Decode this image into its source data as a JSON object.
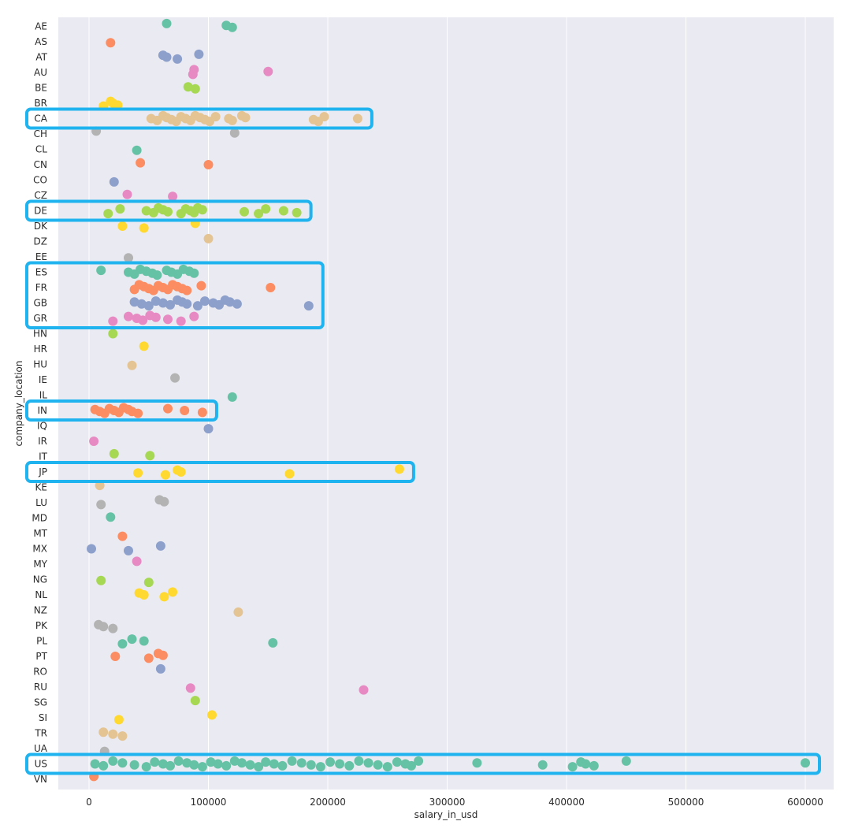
{
  "chart_data": {
    "type": "scatter",
    "xlabel": "salary_in_usd",
    "ylabel": "company_location",
    "xlim": [
      -25000,
      615000
    ],
    "xticks": [
      0,
      100000,
      200000,
      300000,
      400000,
      500000,
      600000
    ],
    "xtick_labels": [
      "0",
      "100000",
      "200000",
      "300000",
      "400000",
      "500000",
      "600000"
    ],
    "grid": "vertical",
    "background": "#eaeaf2",
    "palette": [
      "#66c2a5",
      "#fc8d62",
      "#8da0cb",
      "#e78ac3",
      "#a6d854",
      "#ffd92f",
      "#e5c494",
      "#b3b3b3"
    ],
    "highlight_color": "#1fb4ef",
    "categories": [
      "AE",
      "AS",
      "AT",
      "AU",
      "BE",
      "BR",
      "CA",
      "CH",
      "CL",
      "CN",
      "CO",
      "CZ",
      "DE",
      "DK",
      "DZ",
      "EE",
      "ES",
      "FR",
      "GB",
      "GR",
      "HN",
      "HR",
      "HU",
      "IE",
      "IL",
      "IN",
      "IQ",
      "IR",
      "IT",
      "JP",
      "KE",
      "LU",
      "MD",
      "MT",
      "MX",
      "MY",
      "NG",
      "NL",
      "NZ",
      "PK",
      "PL",
      "PT",
      "RO",
      "RU",
      "SG",
      "SI",
      "TR",
      "UA",
      "US",
      "VN"
    ],
    "series": [
      {
        "category": "AE",
        "values": [
          65000,
          115000,
          120000
        ]
      },
      {
        "category": "AS",
        "values": [
          18000
        ]
      },
      {
        "category": "AT",
        "values": [
          62000,
          65000,
          74000,
          92000
        ]
      },
      {
        "category": "AU",
        "values": [
          87000,
          88000,
          150000
        ]
      },
      {
        "category": "BE",
        "values": [
          83000,
          89000
        ]
      },
      {
        "category": "BR",
        "values": [
          12000,
          18000,
          20000,
          24000
        ]
      },
      {
        "category": "CA",
        "values": [
          52000,
          57000,
          62000,
          65000,
          69000,
          73000,
          77000,
          81000,
          85000,
          89000,
          93000,
          97000,
          101000,
          106000,
          117000,
          120000,
          128000,
          131000,
          188000,
          192000,
          197000,
          225000
        ]
      },
      {
        "category": "CH",
        "values": [
          6000,
          122000
        ]
      },
      {
        "category": "CL",
        "values": [
          40000
        ]
      },
      {
        "category": "CN",
        "values": [
          43000,
          100000
        ]
      },
      {
        "category": "CO",
        "values": [
          21000
        ]
      },
      {
        "category": "CZ",
        "values": [
          32000,
          70000
        ]
      },
      {
        "category": "DE",
        "values": [
          16000,
          26000,
          48000,
          54000,
          58000,
          62000,
          66000,
          77000,
          81000,
          85000,
          88000,
          91000,
          95000,
          130000,
          142000,
          148000,
          163000,
          174000
        ]
      },
      {
        "category": "DK",
        "values": [
          28000,
          46000,
          89000
        ]
      },
      {
        "category": "DZ",
        "values": [
          100000
        ]
      },
      {
        "category": "EE",
        "values": [
          33000
        ]
      },
      {
        "category": "ES",
        "values": [
          10000,
          33000,
          38000,
          43000,
          48000,
          53000,
          57000,
          65000,
          69000,
          74000,
          79000,
          84000,
          88000
        ]
      },
      {
        "category": "FR",
        "values": [
          38000,
          42000,
          46000,
          50000,
          54000,
          58000,
          62000,
          66000,
          70000,
          74000,
          78000,
          82000,
          94000,
          152000
        ]
      },
      {
        "category": "GB",
        "values": [
          38000,
          44000,
          50000,
          56000,
          62000,
          68000,
          74000,
          78000,
          82000,
          91000,
          97000,
          104000,
          109000,
          114000,
          118000,
          124000,
          184000
        ]
      },
      {
        "category": "GR",
        "values": [
          20000,
          33000,
          40000,
          45000,
          51000,
          56000,
          66000,
          77000,
          88000
        ]
      },
      {
        "category": "HN",
        "values": [
          20000
        ]
      },
      {
        "category": "HR",
        "values": [
          46000
        ]
      },
      {
        "category": "HU",
        "values": [
          36000
        ]
      },
      {
        "category": "IE",
        "values": [
          72000
        ]
      },
      {
        "category": "IL",
        "values": [
          120000
        ]
      },
      {
        "category": "IN",
        "values": [
          5000,
          9000,
          13000,
          17000,
          21000,
          25000,
          29000,
          33000,
          36000,
          41000,
          66000,
          80000,
          95000
        ]
      },
      {
        "category": "IQ",
        "values": [
          100000
        ]
      },
      {
        "category": "IR",
        "values": [
          4000
        ]
      },
      {
        "category": "IT",
        "values": [
          21000,
          51000
        ]
      },
      {
        "category": "JP",
        "values": [
          41000,
          64000,
          74000,
          77000,
          168000,
          260000
        ]
      },
      {
        "category": "KE",
        "values": [
          9000
        ]
      },
      {
        "category": "LU",
        "values": [
          10000,
          59000,
          63000
        ]
      },
      {
        "category": "MD",
        "values": [
          18000
        ]
      },
      {
        "category": "MT",
        "values": [
          28000
        ]
      },
      {
        "category": "MX",
        "values": [
          2000,
          33000,
          60000
        ]
      },
      {
        "category": "MY",
        "values": [
          40000
        ]
      },
      {
        "category": "NG",
        "values": [
          10000,
          50000
        ]
      },
      {
        "category": "NL",
        "values": [
          42000,
          46000,
          63000,
          70000
        ]
      },
      {
        "category": "NZ",
        "values": [
          125000
        ]
      },
      {
        "category": "PK",
        "values": [
          8000,
          12000,
          20000
        ]
      },
      {
        "category": "PL",
        "values": [
          28000,
          36000,
          46000,
          154000
        ]
      },
      {
        "category": "PT",
        "values": [
          22000,
          50000,
          58000,
          62000
        ]
      },
      {
        "category": "RO",
        "values": [
          60000
        ]
      },
      {
        "category": "RU",
        "values": [
          85000,
          230000
        ]
      },
      {
        "category": "SG",
        "values": [
          89000
        ]
      },
      {
        "category": "SI",
        "values": [
          25000,
          103000
        ]
      },
      {
        "category": "TR",
        "values": [
          12000,
          20000,
          28000
        ]
      },
      {
        "category": "UA",
        "values": [
          13000
        ]
      },
      {
        "category": "US",
        "values": [
          5000,
          12000,
          20000,
          28000,
          38000,
          48000,
          55000,
          62000,
          68000,
          75000,
          82000,
          88000,
          95000,
          102000,
          108000,
          115000,
          122000,
          128000,
          135000,
          142000,
          148000,
          155000,
          162000,
          170000,
          178000,
          186000,
          194000,
          202000,
          210000,
          218000,
          226000,
          234000,
          242000,
          250000,
          258000,
          265000,
          270000,
          276000,
          325000,
          380000,
          405000,
          412000,
          416000,
          423000,
          450000,
          600000
        ]
      },
      {
        "category": "VN",
        "values": [
          4000
        ]
      }
    ],
    "highlight_boxes": [
      {
        "categories": [
          "CA"
        ]
      },
      {
        "categories": [
          "DE"
        ]
      },
      {
        "categories": [
          "ES",
          "FR",
          "GB",
          "GR"
        ]
      },
      {
        "categories": [
          "IN"
        ]
      },
      {
        "categories": [
          "JP"
        ]
      },
      {
        "categories": [
          "US"
        ]
      }
    ]
  }
}
